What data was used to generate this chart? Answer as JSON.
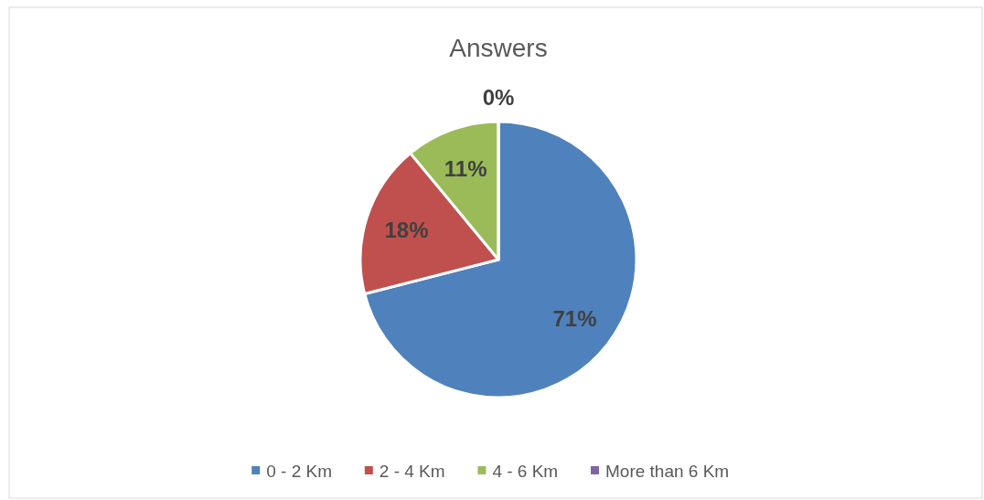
{
  "chart_data": {
    "type": "pie",
    "title": "Answers",
    "categories": [
      "0 - 2 Km",
      "2 - 4 Km",
      "4 - 6 Km",
      "More than 6 Km"
    ],
    "values": [
      71,
      18,
      11,
      0
    ],
    "colors": [
      "#4f81bd",
      "#c0504d",
      "#9bbb59",
      "#8064a2"
    ],
    "value_labels": [
      "71%",
      "18%",
      "11%",
      "0%"
    ],
    "legend": "bottom"
  }
}
